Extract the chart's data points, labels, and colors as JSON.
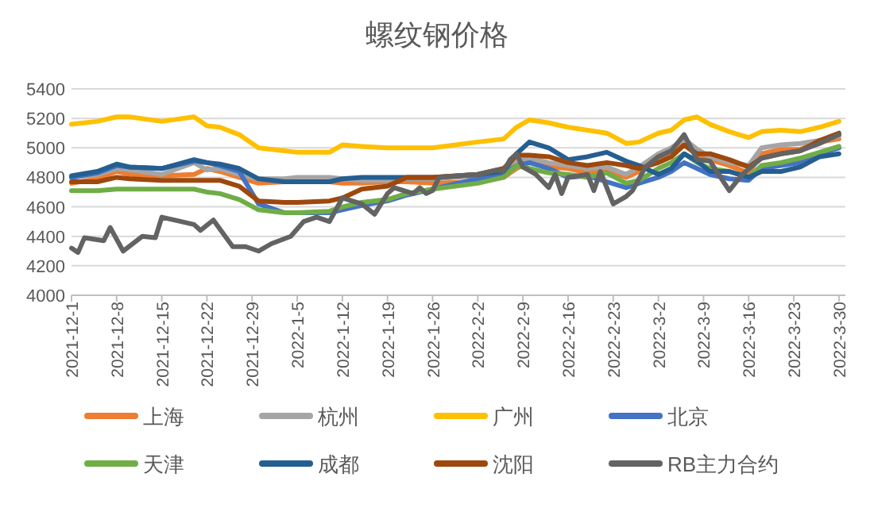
{
  "chart_data": {
    "type": "line",
    "title": "螺纹钢价格",
    "x": [
      "2021-12-01",
      "2021-12-05",
      "2021-12-08",
      "2021-12-10",
      "2021-12-15",
      "2021-12-20",
      "2021-12-22",
      "2021-12-24",
      "2021-12-27",
      "2021-12-30",
      "2022-01-03",
      "2022-01-05",
      "2022-01-10",
      "2022-01-12",
      "2022-01-15",
      "2022-01-19",
      "2022-01-22",
      "2022-01-26",
      "2022-02-02",
      "2022-02-06",
      "2022-02-08",
      "2022-02-10",
      "2022-02-13",
      "2022-02-16",
      "2022-02-19",
      "2022-02-22",
      "2022-02-25",
      "2022-02-27",
      "2022-03-02",
      "2022-03-04",
      "2022-03-06",
      "2022-03-08",
      "2022-03-10",
      "2022-03-13",
      "2022-03-16",
      "2022-03-18",
      "2022-03-21",
      "2022-03-24",
      "2022-03-27",
      "2022-03-30"
    ],
    "series": [
      {
        "name": "上海",
        "color": "#ed7d31",
        "values": [
          4760,
          4790,
          4840,
          4820,
          4810,
          4820,
          4860,
          4840,
          4800,
          4760,
          4770,
          4770,
          4770,
          4760,
          4760,
          4770,
          4770,
          4760,
          4770,
          4800,
          4860,
          4900,
          4870,
          4860,
          4830,
          4850,
          4800,
          4840,
          4920,
          4980,
          5020,
          4950,
          4920,
          4880,
          4830,
          4960,
          4990,
          4990,
          5040,
          5060
        ]
      },
      {
        "name": "杭州",
        "color": "#a5a5a5",
        "values": [
          4800,
          4820,
          4860,
          4850,
          4820,
          4900,
          4850,
          4860,
          4820,
          4790,
          4790,
          4800,
          4800,
          4790,
          4780,
          4780,
          4790,
          4790,
          4810,
          4840,
          4910,
          4930,
          4900,
          4880,
          4860,
          4870,
          4820,
          4870,
          4960,
          5000,
          5060,
          4990,
          4940,
          4900,
          4880,
          5000,
          5020,
          5030,
          5050,
          5080
        ]
      },
      {
        "name": "广州",
        "color": "#ffc000",
        "values": [
          5160,
          5180,
          5210,
          5210,
          5180,
          5210,
          5150,
          5140,
          5090,
          5000,
          4980,
          4970,
          4970,
          5020,
          5010,
          5000,
          5000,
          5000,
          5040,
          5060,
          5140,
          5190,
          5170,
          5140,
          5120,
          5100,
          5030,
          5040,
          5100,
          5120,
          5190,
          5210,
          5160,
          5110,
          5070,
          5110,
          5120,
          5110,
          5140,
          5180
        ]
      },
      {
        "name": "北京",
        "color": "#4472c4",
        "values": [
          4800,
          4830,
          4880,
          4870,
          4860,
          4910,
          4900,
          4880,
          4840,
          4620,
          4560,
          4560,
          4560,
          4580,
          4610,
          4640,
          4680,
          4720,
          4790,
          4820,
          4880,
          4900,
          4860,
          4800,
          4810,
          4770,
          4730,
          4760,
          4800,
          4840,
          4900,
          4860,
          4820,
          4790,
          4780,
          4860,
          4880,
          4900,
          4960,
          5000
        ]
      },
      {
        "name": "天津",
        "color": "#70ad47",
        "values": [
          4710,
          4710,
          4720,
          4720,
          4720,
          4720,
          4700,
          4690,
          4650,
          4580,
          4560,
          4560,
          4570,
          4600,
          4630,
          4650,
          4690,
          4720,
          4760,
          4800,
          4880,
          4860,
          4830,
          4820,
          4800,
          4830,
          4760,
          4780,
          4860,
          4900,
          4960,
          4900,
          4860,
          4840,
          4800,
          4880,
          4900,
          4930,
          4970,
          5010
        ]
      },
      {
        "name": "成都",
        "color": "#255e91",
        "values": [
          4810,
          4840,
          4890,
          4870,
          4860,
          4920,
          4900,
          4890,
          4860,
          4790,
          4770,
          4770,
          4770,
          4790,
          4800,
          4800,
          4800,
          4800,
          4820,
          4840,
          4960,
          5040,
          5000,
          4920,
          4940,
          4970,
          4910,
          4880,
          4820,
          4860,
          4960,
          4910,
          4840,
          4840,
          4800,
          4840,
          4840,
          4870,
          4940,
          4960
        ]
      },
      {
        "name": "沈阳",
        "color": "#9e480e",
        "values": [
          4770,
          4770,
          4800,
          4790,
          4780,
          4780,
          4780,
          4780,
          4740,
          4640,
          4630,
          4630,
          4640,
          4660,
          4720,
          4740,
          4800,
          4800,
          4820,
          4860,
          4950,
          4950,
          4940,
          4900,
          4880,
          4900,
          4880,
          4860,
          4900,
          4940,
          5020,
          4960,
          4960,
          4920,
          4870,
          4930,
          4960,
          4980,
          5050,
          5100
        ]
      },
      {
        "name": "RB主力合约",
        "color": "#636363",
        "x": [
          "2021-12-01",
          "2021-12-02",
          "2021-12-03",
          "2021-12-06",
          "2021-12-07",
          "2021-12-09",
          "2021-12-12",
          "2021-12-14",
          "2021-12-15",
          "2021-12-18",
          "2021-12-20",
          "2021-12-21",
          "2021-12-23",
          "2021-12-26",
          "2021-12-28",
          "2021-12-30",
          "2022-01-01",
          "2022-01-04",
          "2022-01-06",
          "2022-01-08",
          "2022-01-10",
          "2022-01-12",
          "2022-01-15",
          "2022-01-17",
          "2022-01-19",
          "2022-01-20",
          "2022-01-23",
          "2022-01-24",
          "2022-01-25",
          "2022-01-26",
          "2022-01-27",
          "2022-02-02",
          "2022-02-05",
          "2022-02-06",
          "2022-02-07",
          "2022-02-08",
          "2022-02-09",
          "2022-02-11",
          "2022-02-13",
          "2022-02-14",
          "2022-02-15",
          "2022-02-16",
          "2022-02-19",
          "2022-02-20",
          "2022-02-21",
          "2022-02-23",
          "2022-02-25",
          "2022-02-26",
          "2022-02-28",
          "2022-03-02",
          "2022-03-04",
          "2022-03-06",
          "2022-03-08",
          "2022-03-10",
          "2022-03-13",
          "2022-03-15",
          "2022-03-18",
          "2022-03-21",
          "2022-03-24",
          "2022-03-27",
          "2022-03-30"
        ],
        "values": [
          4320,
          4290,
          4390,
          4370,
          4460,
          4300,
          4400,
          4390,
          4530,
          4500,
          4480,
          4440,
          4510,
          4330,
          4330,
          4300,
          4350,
          4400,
          4500,
          4530,
          4500,
          4660,
          4620,
          4550,
          4690,
          4730,
          4690,
          4730,
          4690,
          4710,
          4800,
          4820,
          4850,
          4840,
          4920,
          4960,
          4870,
          4820,
          4730,
          4820,
          4690,
          4800,
          4820,
          4710,
          4840,
          4620,
          4670,
          4710,
          4870,
          4940,
          4980,
          5090,
          4920,
          4910,
          4710,
          4820,
          4930,
          4960,
          4980,
          5030,
          5090
        ]
      }
    ],
    "xlim": [
      "2021-12-01",
      "2022-03-31"
    ],
    "xticks": [
      {
        "value": "2021-12-01",
        "label": "2021-12-1"
      },
      {
        "value": "2021-12-08",
        "label": "2021-12-8"
      },
      {
        "value": "2021-12-15",
        "label": "2021-12-15"
      },
      {
        "value": "2021-12-22",
        "label": "2021-12-22"
      },
      {
        "value": "2021-12-29",
        "label": "2021-12-29"
      },
      {
        "value": "2022-01-05",
        "label": "2022-1-5"
      },
      {
        "value": "2022-01-12",
        "label": "2022-1-12"
      },
      {
        "value": "2022-01-19",
        "label": "2022-1-19"
      },
      {
        "value": "2022-01-26",
        "label": "2022-1-26"
      },
      {
        "value": "2022-02-02",
        "label": "2022-2-2"
      },
      {
        "value": "2022-02-09",
        "label": "2022-2-9"
      },
      {
        "value": "2022-02-16",
        "label": "2022-2-16"
      },
      {
        "value": "2022-02-23",
        "label": "2022-2-23"
      },
      {
        "value": "2022-03-02",
        "label": "2022-3-2"
      },
      {
        "value": "2022-03-09",
        "label": "2022-3-9"
      },
      {
        "value": "2022-03-16",
        "label": "2022-3-16"
      },
      {
        "value": "2022-03-23",
        "label": "2022-3-23"
      },
      {
        "value": "2022-03-30",
        "label": "2022-3-30"
      }
    ],
    "ylim": [
      4000,
      5400
    ],
    "yticks": [
      4000,
      4200,
      4400,
      4600,
      4800,
      5000,
      5200,
      5400
    ],
    "grid": "y",
    "legend": "bottom",
    "marker": "none",
    "line_style": "solid"
  }
}
